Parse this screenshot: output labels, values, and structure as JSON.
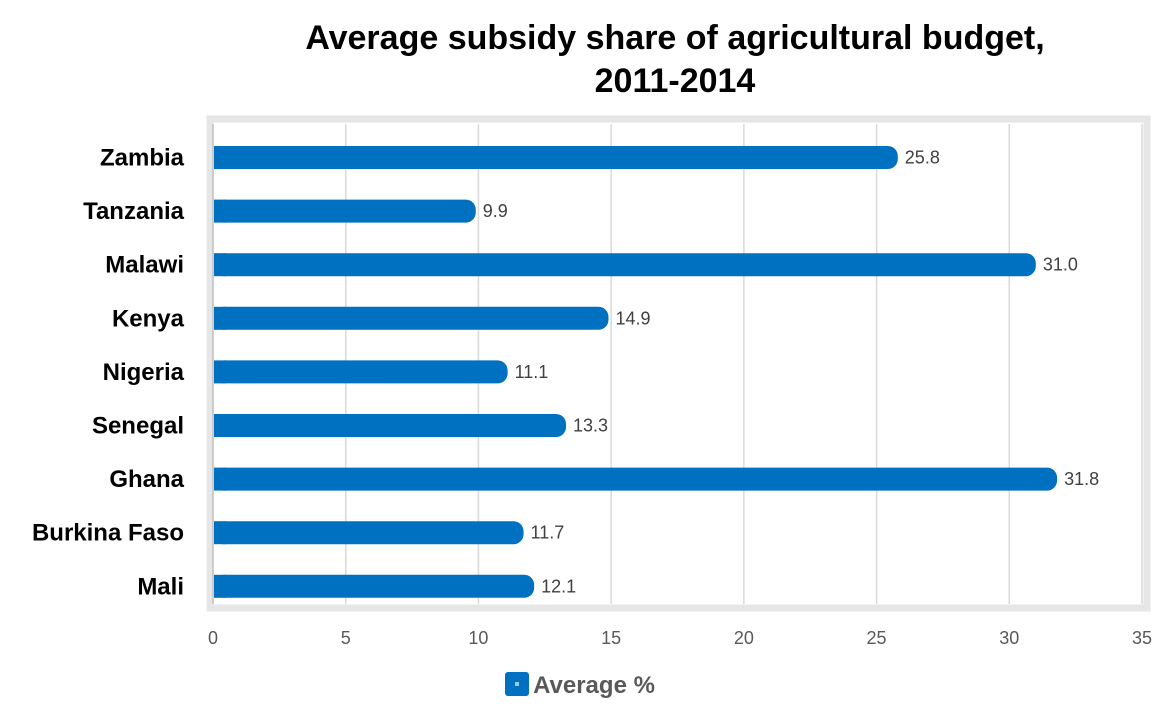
{
  "chart_data": {
    "type": "bar",
    "orientation": "horizontal",
    "title_line1": "Average subsidy share of agricultural  budget,",
    "title_line2": "2011-2014",
    "categories": [
      "Zambia",
      "Tanzania",
      "Malawi",
      "Kenya",
      "Nigeria",
      "Senegal",
      "Ghana",
      "Burkina Faso",
      "Mali"
    ],
    "series": [
      {
        "name": "Average %",
        "values": [
          25.8,
          9.9,
          31.0,
          14.9,
          11.1,
          13.3,
          31.8,
          11.7,
          12.1
        ],
        "labels": [
          "25.8",
          "9.9",
          "31.0",
          "14.9",
          "11.1",
          "13.3",
          "31.8",
          "11.7",
          "12.1"
        ]
      }
    ],
    "xlim": [
      0,
      35
    ],
    "xticks": [
      "0",
      "5",
      "10",
      "15",
      "20",
      "25",
      "30",
      "35"
    ],
    "grid": true,
    "legend_position": "bottom",
    "colors": {
      "bar": "#0070c0",
      "grid": "#d9d9d9",
      "plot_border": "#e6e6e6"
    }
  }
}
